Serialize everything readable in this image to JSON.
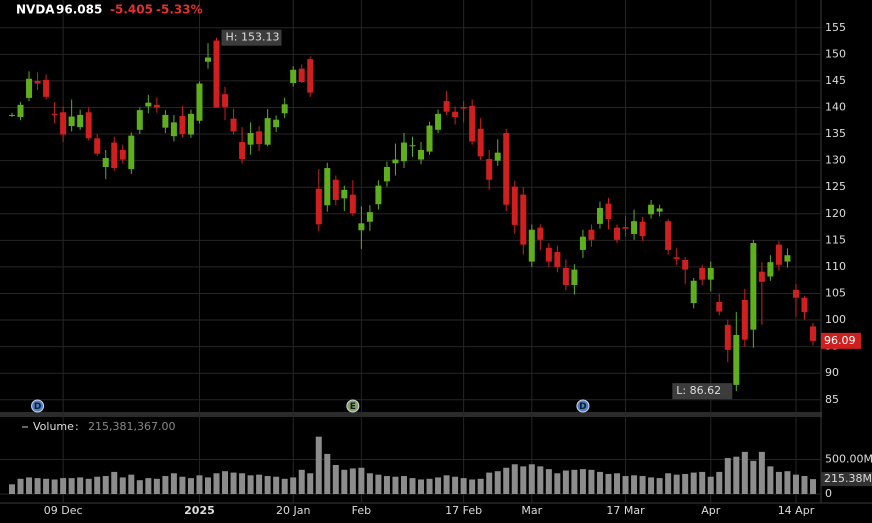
{
  "chart_data": {
    "type": "candlestick",
    "symbol": "NVDA",
    "last": 96.085,
    "change": -5.405,
    "change_pct": {
      "value": -5.33,
      "label": "-5.33%"
    },
    "price_tag": 96.09,
    "up_color": "#5fae1e",
    "down_color": "#d01f1f",
    "volume_color": "#8c8c8c",
    "categories": [
      null,
      null,
      null,
      null,
      null,
      null,
      "09 Dec",
      null,
      null,
      null,
      null,
      null,
      null,
      null,
      null,
      null,
      null,
      null,
      null,
      null,
      null,
      null,
      "2025",
      null,
      null,
      null,
      null,
      null,
      null,
      null,
      null,
      null,
      null,
      "20 Jan",
      null,
      null,
      null,
      null,
      null,
      null,
      null,
      "Feb",
      null,
      null,
      null,
      null,
      null,
      null,
      null,
      null,
      null,
      null,
      null,
      "17 Feb",
      null,
      null,
      null,
      null,
      null,
      null,
      null,
      "Mar",
      null,
      null,
      null,
      null,
      null,
      null,
      null,
      null,
      null,
      null,
      "17 Mar",
      null,
      null,
      null,
      null,
      null,
      null,
      null,
      null,
      null,
      "Apr",
      null,
      null,
      null,
      null,
      null,
      null,
      null,
      null,
      null,
      "14 Apr",
      null,
      null
    ],
    "open": [
      138.6,
      138.2,
      141.8,
      145.0,
      145.2,
      138.8,
      139.1,
      136.5,
      136.3,
      139.1,
      134.2,
      128.8,
      133.4,
      132.0,
      128.4,
      135.8,
      140.2,
      140.5,
      136.2,
      134.6,
      138.4,
      134.9,
      137.5,
      148.6,
      152.6,
      142.5,
      137.9,
      133.5,
      133.0,
      135.5,
      133.0,
      136.3,
      138.9,
      144.6,
      147.3,
      149.1,
      124.7,
      121.6,
      126.4,
      122.9,
      123.6,
      116.9,
      118.5,
      121.8,
      126.1,
      129.5,
      129.9,
      132.7,
      130.2,
      131.7,
      135.8,
      141.2,
      139.2,
      140.1,
      140.3,
      136.0,
      130.3,
      130.0,
      135.2,
      125.1,
      123.6,
      111.0,
      117.4,
      113.6,
      112.8,
      109.8,
      106.6,
      113.2,
      117.0,
      118.1,
      121.9,
      117.4,
      117.5,
      116.2,
      118.5,
      119.9,
      120.4,
      118.6,
      111.8,
      111.3,
      103.2,
      109.8,
      107.6,
      103.4,
      99.1,
      87.8,
      103.8,
      98.2,
      109.1,
      108.2,
      114.2,
      111.0,
      105.7,
      104.2,
      98.8
    ],
    "high": [
      139.0,
      141.0,
      146.8,
      146.6,
      146.2,
      141.0,
      140.2,
      141.5,
      139.6,
      140.0,
      135.0,
      132.0,
      134.5,
      133.0,
      135.3,
      140.0,
      142.4,
      141.9,
      139.5,
      138.6,
      140.3,
      139.6,
      144.9,
      152.1,
      153.13,
      143.9,
      139.8,
      136.3,
      137.2,
      136.5,
      139.7,
      138.5,
      141.8,
      147.8,
      148.1,
      149.6,
      128.4,
      129.6,
      127.2,
      125.3,
      126.3,
      121.4,
      121.6,
      126.3,
      129.8,
      133.2,
      135.2,
      134.5,
      133.5,
      137.3,
      139.6,
      143.1,
      140.2,
      141.2,
      141.5,
      138.0,
      132.0,
      134.0,
      136.0,
      126.2,
      125.0,
      118.0,
      118.0,
      114.5,
      114.0,
      111.4,
      110.5,
      117.0,
      118.0,
      122.3,
      123.0,
      118.0,
      119.6,
      120.8,
      119.4,
      122.6,
      121.7,
      119.0,
      113.5,
      111.9,
      107.9,
      110.4,
      111.0,
      104.9,
      100.1,
      101.5,
      105.9,
      115.1,
      110.9,
      112.2,
      114.9,
      113.5,
      106.8,
      104.5,
      99.5
    ],
    "low": [
      138.2,
      137.6,
      141.2,
      143.3,
      141.5,
      137.0,
      133.5,
      135.5,
      135.8,
      133.8,
      130.9,
      126.5,
      128.1,
      129.5,
      127.5,
      135.0,
      138.9,
      139.0,
      135.2,
      133.6,
      134.4,
      134.3,
      137.0,
      147.3,
      140.0,
      137.6,
      134.9,
      129.5,
      131.1,
      131.8,
      132.7,
      135.4,
      138.0,
      143.9,
      144.6,
      142.0,
      116.7,
      120.4,
      121.6,
      120.5,
      119.6,
      113.4,
      116.8,
      120.8,
      125.1,
      127.2,
      128.6,
      130.7,
      129.3,
      131.1,
      135.2,
      138.6,
      136.8,
      137.2,
      133.0,
      130.1,
      124.5,
      129.0,
      120.5,
      116.2,
      112.3,
      110.0,
      113.2,
      110.0,
      109.0,
      105.6,
      104.8,
      111.7,
      113.8,
      117.2,
      117.1,
      114.5,
      115.7,
      115.1,
      114.9,
      119.1,
      119.5,
      112.3,
      110.4,
      106.8,
      102.2,
      106.6,
      105.4,
      100.9,
      92.1,
      86.62,
      95.0,
      94.8,
      99.1,
      107.4,
      109.3,
      109.9,
      100.6,
      100.1,
      95.2
    ],
    "close": [
      138.6,
      140.5,
      145.4,
      144.5,
      142.0,
      138.6,
      134.9,
      138.3,
      138.6,
      134.2,
      131.3,
      130.5,
      128.6,
      130.2,
      134.7,
      139.5,
      140.9,
      140.0,
      138.6,
      137.2,
      135.0,
      138.8,
      144.5,
      149.4,
      140.0,
      140.1,
      135.5,
      130.3,
      135.2,
      133.1,
      138.0,
      137.7,
      140.6,
      147.1,
      144.8,
      142.8,
      118.0,
      128.6,
      122.6,
      124.5,
      120.1,
      118.2,
      120.3,
      125.3,
      128.8,
      130.2,
      133.4,
      132.9,
      132.0,
      136.6,
      138.8,
      139.2,
      138.2,
      139.8,
      133.6,
      130.8,
      126.4,
      131.5,
      121.7,
      117.9,
      114.2,
      117.0,
      115.1,
      111.0,
      110.0,
      106.6,
      109.5,
      115.7,
      115.1,
      121.1,
      119.0,
      115.1,
      117.2,
      118.6,
      115.8,
      121.7,
      121.0,
      113.2,
      111.5,
      109.5,
      107.4,
      107.6,
      109.8,
      101.6,
      94.4,
      97.2,
      96.3,
      114.5,
      107.2,
      110.9,
      110.4,
      112.2,
      104.2,
      101.5,
      96.085
    ],
    "ylim": [
      82.7,
      157.4
    ],
    "yticks": [
      85,
      90,
      95,
      100,
      105,
      110,
      115,
      120,
      125,
      130,
      135,
      140,
      145,
      150,
      155
    ],
    "annotations": {
      "high": "H: 153.13",
      "low": "L: 86.62"
    },
    "events": [
      {
        "label": "D",
        "index": 3
      },
      {
        "label": "E",
        "index": 40
      },
      {
        "label": "D",
        "index": 67
      }
    ],
    "volume": {
      "name": "Volume",
      "current": {
        "value": 215381367,
        "label": "215,381,367.00"
      },
      "tag": {
        "value": 215381367,
        "label": "215.38M"
      },
      "values": [
        140000000,
        220000000,
        240000000,
        230000000,
        220000000,
        210000000,
        230000000,
        230000000,
        240000000,
        220000000,
        250000000,
        260000000,
        320000000,
        240000000,
        280000000,
        200000000,
        230000000,
        220000000,
        260000000,
        300000000,
        250000000,
        230000000,
        270000000,
        240000000,
        300000000,
        330000000,
        310000000,
        300000000,
        270000000,
        280000000,
        260000000,
        250000000,
        220000000,
        240000000,
        350000000,
        300000000,
        830000000,
        580000000,
        420000000,
        350000000,
        370000000,
        380000000,
        300000000,
        280000000,
        260000000,
        250000000,
        260000000,
        230000000,
        210000000,
        220000000,
        240000000,
        270000000,
        250000000,
        230000000,
        210000000,
        220000000,
        310000000,
        330000000,
        380000000,
        430000000,
        400000000,
        430000000,
        400000000,
        360000000,
        300000000,
        340000000,
        350000000,
        360000000,
        350000000,
        320000000,
        290000000,
        300000000,
        260000000,
        270000000,
        260000000,
        240000000,
        230000000,
        300000000,
        280000000,
        290000000,
        310000000,
        320000000,
        250000000,
        320000000,
        520000000,
        540000000,
        610000000,
        480000000,
        610000000,
        400000000,
        320000000,
        330000000,
        280000000,
        260000000,
        215381367
      ],
      "ylim": [
        0,
        1100000000
      ],
      "yticks": [
        0,
        {
          "value": 500000000,
          "label": "500.00M"
        }
      ]
    }
  }
}
